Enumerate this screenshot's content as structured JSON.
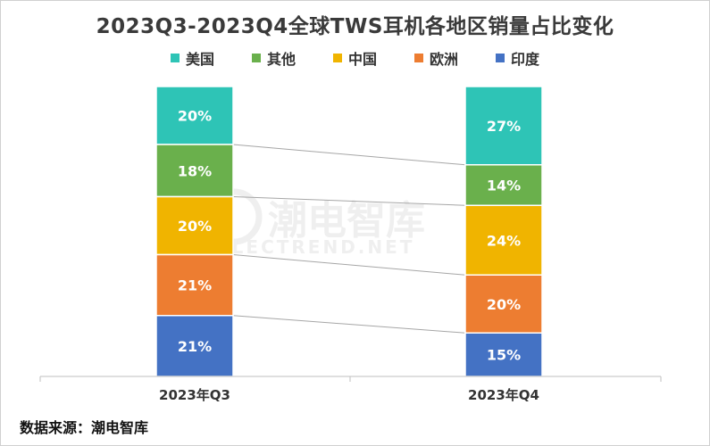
{
  "chart_data": {
    "type": "bar",
    "stacked": true,
    "normalized": true,
    "title": "2023Q3-2023Q4全球TWS耳机各地区销量占比变化",
    "categories": [
      "2023年Q3",
      "2023年Q4"
    ],
    "series": [
      {
        "name": "美国",
        "color": "#2ec4b6",
        "values": [
          20,
          27
        ],
        "labels": [
          "20%",
          "27%"
        ]
      },
      {
        "name": "其他",
        "color": "#6ab04c",
        "values": [
          18,
          14
        ],
        "labels": [
          "18%",
          "14%"
        ]
      },
      {
        "name": "中国",
        "color": "#f0b400",
        "values": [
          20,
          24
        ],
        "labels": [
          "20%",
          "24%"
        ]
      },
      {
        "name": "欧洲",
        "color": "#ed7d31",
        "values": [
          21,
          20
        ],
        "labels": [
          "21%",
          "20%"
        ]
      },
      {
        "name": "印度",
        "color": "#4472c4",
        "values": [
          21,
          15
        ],
        "labels": [
          "21%",
          "15%"
        ]
      }
    ],
    "legend": "top",
    "grid": false
  },
  "watermark": {
    "cn": "潮电智库",
    "en": "ELECTREND.NET"
  },
  "footer": "数据来源：潮电智库"
}
